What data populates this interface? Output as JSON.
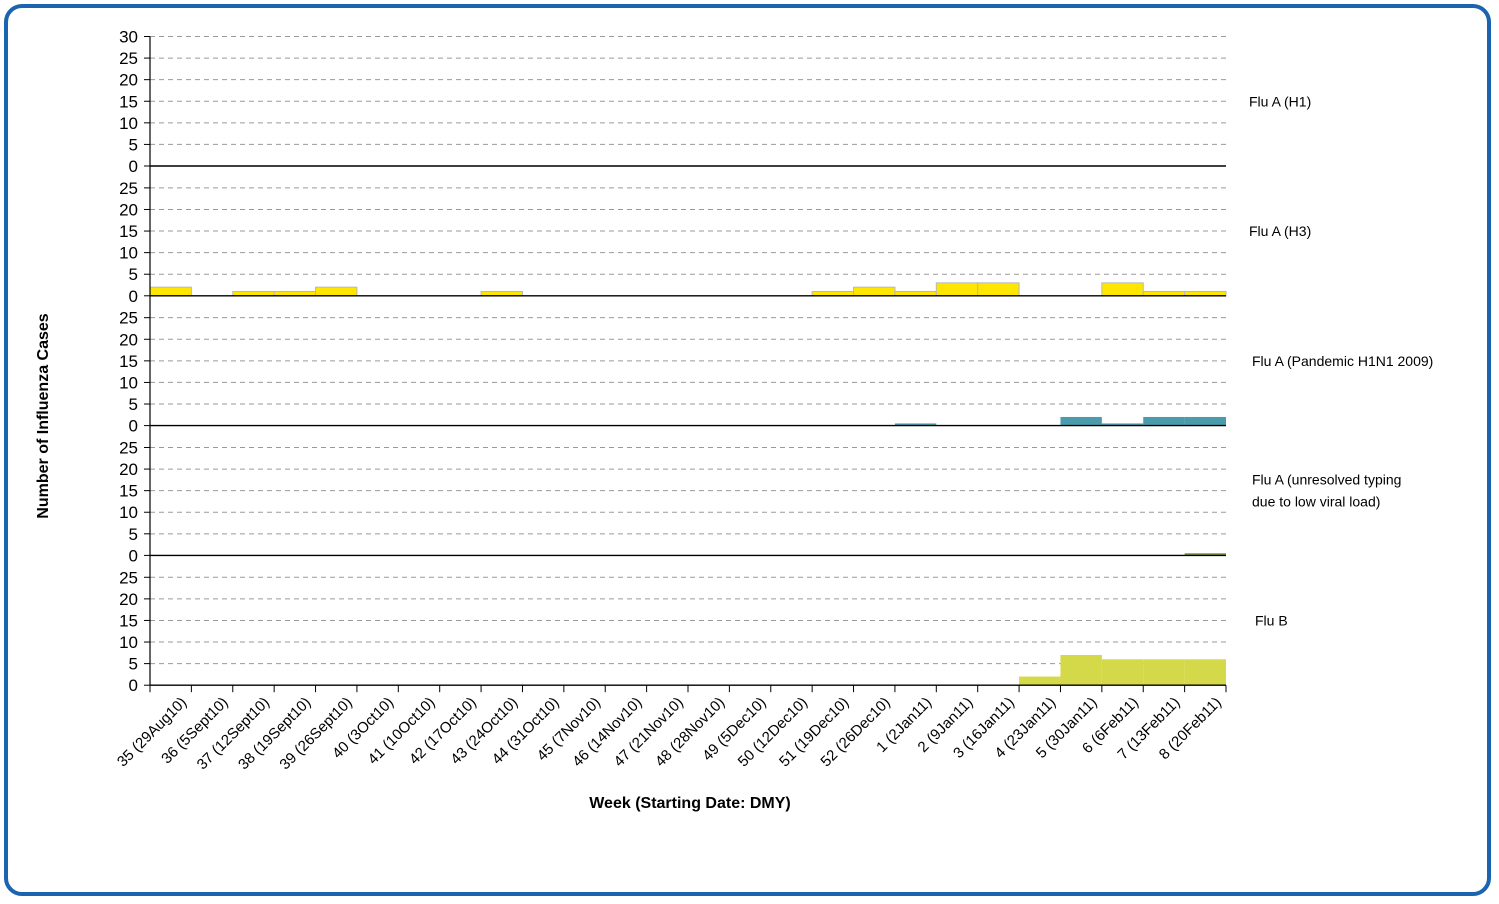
{
  "chart_data": {
    "type": "bar",
    "layout": "stacked-panels",
    "xlabel": "Week (Starting Date: DMY)",
    "ylabel": "Number of Influenza Cases",
    "y_ticks": [
      "30",
      "25",
      "20",
      "15",
      "10",
      "5",
      "0"
    ],
    "panel_y_ticks": [
      "25",
      "20",
      "15",
      "10",
      "5",
      "0"
    ],
    "ylim": [
      0,
      30
    ],
    "grid": true,
    "categories": [
      "35 (29Aug10)",
      "36 (5Sept10)",
      "37 (12Sept10)",
      "38 (19Sept10)",
      "39 (26Sept10)",
      "40 (3Oct10)",
      "41 (10Oct10)",
      "42 (17Oct10)",
      "43 (24Oct10)",
      "44 (31Oct10)",
      "45 (7Nov10)",
      "46 (14Nov10)",
      "47 (21Nov10)",
      "48 (28Nov10)",
      "49 (5Dec10)",
      "50 (12Dec10)",
      "51 (19Dec10)",
      "52 (26Dec10)",
      "1 (2Jan11)",
      "2 (9Jan11)",
      "3 (16Jan11)",
      "4 (23Jan11)",
      "5 (30Jan11)",
      "6 (6Feb11)",
      "7 (13Feb11)",
      "8 (20Feb11)"
    ],
    "series": [
      {
        "name": "Flu A (H1)",
        "label_lines": [
          "Flu A (H1)"
        ],
        "color": "#ffff00",
        "values": [
          0,
          0,
          0,
          0,
          0,
          0,
          0,
          0,
          0,
          0,
          0,
          0,
          0,
          0,
          0,
          0,
          0,
          0,
          0,
          0,
          0,
          0,
          0,
          0,
          0,
          0
        ]
      },
      {
        "name": "Flu A (H3)",
        "label_lines": [
          "Flu A (H3)"
        ],
        "color": "#ffe600",
        "values": [
          2,
          0,
          1,
          1,
          2,
          0,
          0,
          0,
          1,
          0,
          0,
          0,
          0,
          0,
          0,
          0,
          1,
          2,
          1,
          3,
          3,
          0,
          0,
          3,
          1,
          1
        ]
      },
      {
        "name": "Flu A (Pandemic H1N1 2009)",
        "label_lines": [
          "Flu A (Pandemic H1N1 2009)"
        ],
        "color": "#4a9bab",
        "values": [
          0,
          0,
          0,
          0,
          0,
          0,
          0,
          0,
          0,
          0,
          0,
          0,
          0,
          0,
          0,
          0,
          0,
          0,
          0.5,
          0,
          0,
          0,
          2,
          0.5,
          2,
          2
        ]
      },
      {
        "name": "Flu A (unresolved typing due to low viral load)",
        "label_lines": [
          "Flu A (unresolved typing",
          "due to low viral load)"
        ],
        "color": "#7a9a3a",
        "values": [
          0,
          0,
          0,
          0,
          0,
          0,
          0,
          0,
          0,
          0,
          0,
          0,
          0,
          0,
          0,
          0,
          0,
          0,
          0,
          0,
          0,
          0,
          0,
          0,
          0,
          0.5
        ]
      },
      {
        "name": "Flu B",
        "label_lines": [
          "Flu B"
        ],
        "color": "#d4d94a",
        "values": [
          0,
          0,
          0,
          0,
          0,
          0,
          0,
          0,
          0,
          0,
          0,
          0,
          0,
          0,
          0,
          0,
          0,
          0,
          0,
          0,
          0,
          2,
          7,
          6,
          6,
          6
        ]
      }
    ]
  }
}
